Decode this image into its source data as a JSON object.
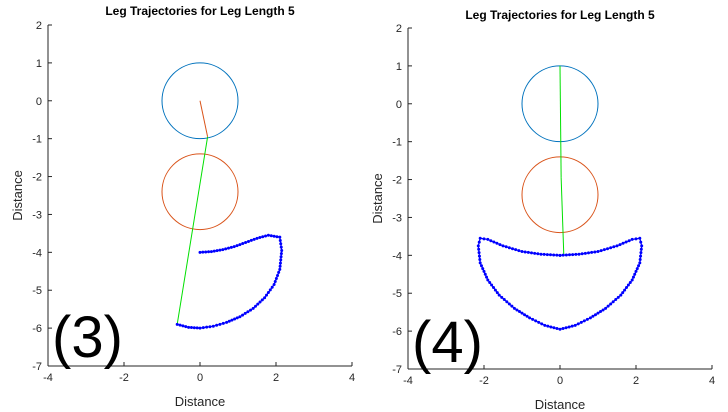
{
  "chart_data": [
    {
      "type": "line",
      "title": "Leg Trajectories for Leg Length 5",
      "xlabel": "Distance",
      "ylabel": "Distance",
      "xlim": [
        -4,
        4
      ],
      "ylim": [
        -7,
        2
      ],
      "xticks": [
        "-4",
        "-2",
        "0",
        "2",
        "4"
      ],
      "yticks": [
        "2",
        "1",
        "0",
        "-1",
        "-2",
        "-3",
        "-4",
        "-5",
        "-6",
        "-7"
      ],
      "label": "(3)",
      "circles": [
        {
          "cx": 0,
          "cy": 0,
          "r": 1,
          "color": "#0072BD"
        },
        {
          "cx": 0,
          "cy": -2.4,
          "r": 1,
          "color": "#D95319"
        }
      ],
      "segments": [
        {
          "x": [
            0,
            0.2
          ],
          "y": [
            0,
            -0.95
          ],
          "color": "#D95319"
        },
        {
          "x": [
            0.2,
            -0.6
          ],
          "y": [
            -0.95,
            -5.9
          ],
          "color": "#00E000"
        }
      ],
      "series": [
        {
          "color": "#0000FF",
          "x": [
            0.0,
            0.3,
            0.6,
            0.9,
            1.2,
            1.5,
            1.8,
            2.1,
            2.15,
            2.1,
            1.95,
            1.7,
            1.4,
            1.05,
            0.7,
            0.35,
            0.0,
            -0.3,
            -0.6
          ],
          "y": [
            -4.0,
            -3.98,
            -3.93,
            -3.85,
            -3.74,
            -3.63,
            -3.55,
            -3.6,
            -3.95,
            -4.45,
            -4.85,
            -5.2,
            -5.48,
            -5.7,
            -5.85,
            -5.95,
            -6.0,
            -5.98,
            -5.9
          ]
        }
      ]
    },
    {
      "type": "line",
      "title": "Leg Trajectories for Leg Length 5",
      "xlabel": "Distance",
      "ylabel": "Distance",
      "xlim": [
        -4,
        4
      ],
      "ylim": [
        -7,
        2
      ],
      "xticks": [
        "-4",
        "-2",
        "0",
        "2",
        "4"
      ],
      "yticks": [
        "2",
        "1",
        "0",
        "-1",
        "-2",
        "-3",
        "-4",
        "-5",
        "-6",
        "-7"
      ],
      "label": "(4)",
      "circles": [
        {
          "cx": 0,
          "cy": 0,
          "r": 1,
          "color": "#0072BD"
        },
        {
          "cx": 0,
          "cy": -2.4,
          "r": 1,
          "color": "#D95319"
        }
      ],
      "segments": [
        {
          "x": [
            0,
            0.03
          ],
          "y": [
            1,
            -1.95
          ],
          "color": "#00E000"
        },
        {
          "x": [
            0.03,
            0.1
          ],
          "y": [
            -1.95,
            -4.0
          ],
          "color": "#00E000"
        }
      ],
      "series": [
        {
          "color": "#0000FF",
          "x": [
            0.0,
            0.5,
            1.0,
            1.5,
            1.9,
            2.1,
            2.15,
            2.1,
            1.9,
            1.6,
            1.2,
            0.8,
            0.4,
            0.0,
            -0.4,
            -0.8,
            -1.2,
            -1.6,
            -1.9,
            -2.1,
            -2.15,
            -2.1,
            -1.9,
            -1.5,
            -1.0,
            -0.5,
            0.0
          ],
          "y": [
            -4.0,
            -3.97,
            -3.9,
            -3.75,
            -3.58,
            -3.55,
            -3.75,
            -4.2,
            -4.65,
            -5.05,
            -5.4,
            -5.65,
            -5.85,
            -5.95,
            -5.85,
            -5.65,
            -5.4,
            -5.05,
            -4.65,
            -4.2,
            -3.75,
            -3.55,
            -3.58,
            -3.75,
            -3.9,
            -3.97,
            -4.0
          ]
        }
      ]
    }
  ]
}
